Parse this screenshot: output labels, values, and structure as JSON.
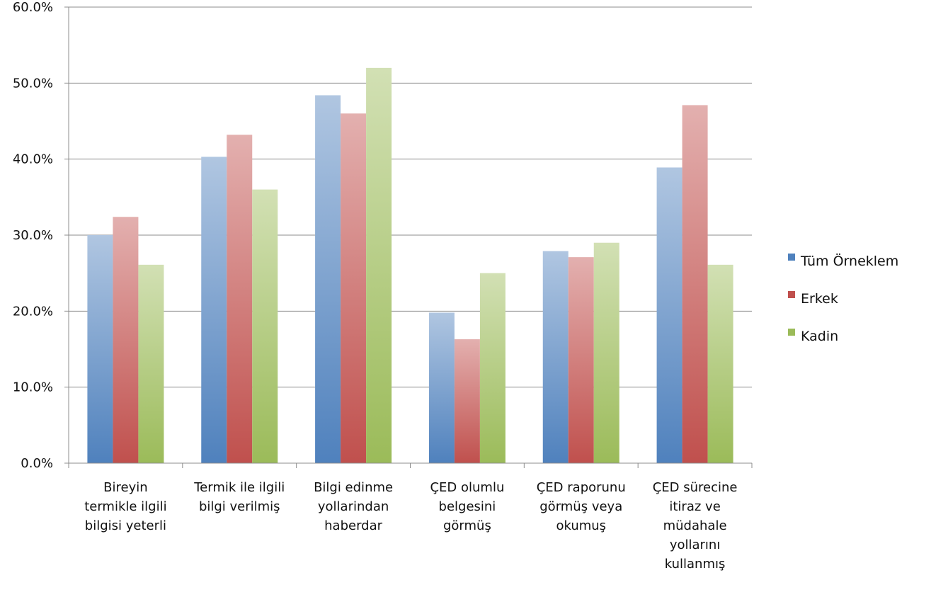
{
  "chart_data": {
    "type": "bar",
    "title": "",
    "xlabel": "",
    "ylabel": "",
    "ylim": [
      0,
      60
    ],
    "yticks": [
      "0.0%",
      "10.0%",
      "20.0%",
      "30.0%",
      "40.0%",
      "50.0%",
      "60.0%"
    ],
    "grid": true,
    "legend_position": "right",
    "categories": [
      [
        "Bireyin",
        "termikle ilgili",
        "bilgisi yeterli"
      ],
      [
        "Termik ile ilgili",
        "bilgi verilmiş"
      ],
      [
        "Bilgi edinme",
        "yollarindan",
        "haberdar"
      ],
      [
        "ÇED olumlu",
        "belgesini",
        "görmüş"
      ],
      [
        "ÇED raporunu",
        "görmüş veya",
        "okumuş"
      ],
      [
        "ÇED sürecine",
        "itiraz ve",
        "müdahale",
        "yollarını",
        "kullanmış"
      ]
    ],
    "series": [
      {
        "name": "Tüm Örneklem",
        "color": "#4F81BD",
        "values": [
          30.0,
          40.3,
          48.4,
          19.8,
          27.9,
          38.9
        ]
      },
      {
        "name": "Erkek",
        "color": "#C0504D",
        "values": [
          32.4,
          43.2,
          46.0,
          16.3,
          27.1,
          47.1
        ]
      },
      {
        "name": "Kadin",
        "color": "#9BBB59",
        "values": [
          26.1,
          36.0,
          52.0,
          25.0,
          29.0,
          26.1
        ]
      }
    ]
  }
}
